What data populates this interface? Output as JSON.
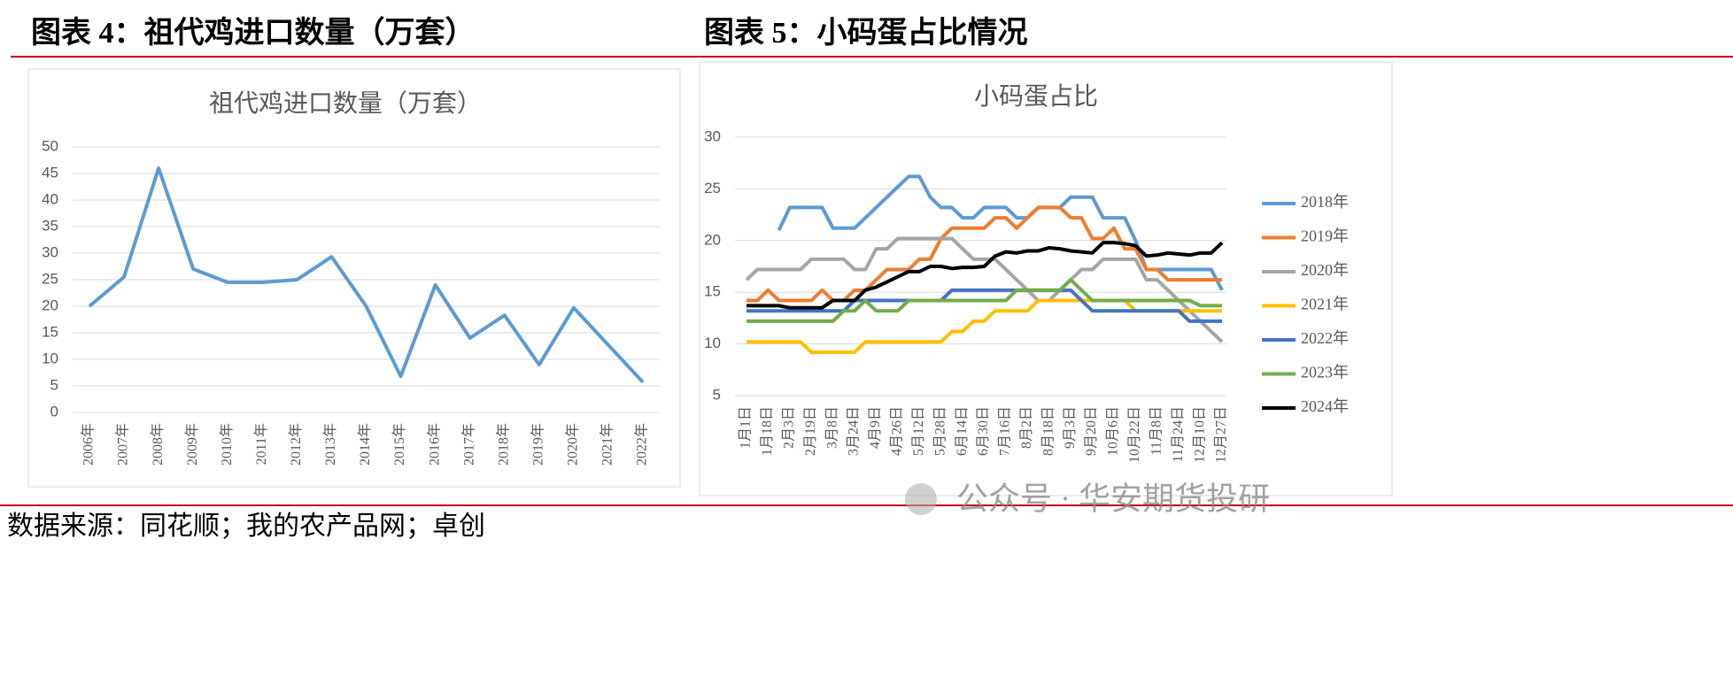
{
  "headings": [
    "图表 4：祖代鸡进口数量（万套）",
    "图表 5：小码蛋占比情况"
  ],
  "source": "数据来源：同花顺；我的农产品网；卓创",
  "watermark": "公众号 · 华安期货投研",
  "chart_data": [
    {
      "type": "line",
      "title": "祖代鸡进口数量（万套）",
      "categories": [
        "2006年",
        "2007年",
        "2008年",
        "2009年",
        "2010年",
        "2011年",
        "2012年",
        "2013年",
        "2014年",
        "2015年",
        "2016年",
        "2017年",
        "2018年",
        "2019年",
        "2020年",
        "2021年",
        "2022年"
      ],
      "values": [
        20,
        25.5,
        46,
        27,
        24.5,
        24.5,
        25,
        29.3,
        20,
        6.8,
        24,
        14,
        18.3,
        9,
        19.7,
        12.7,
        5.7
      ],
      "color": "#5b9bd5",
      "ylim": [
        0,
        50
      ],
      "yticks": [
        0,
        5,
        10,
        15,
        20,
        25,
        30,
        35,
        40,
        45,
        50
      ],
      "grid": true
    },
    {
      "type": "line",
      "title": "小码蛋占比",
      "categories": [
        "1月1日",
        null,
        "1月18日",
        null,
        "2月3日",
        null,
        "2月19日",
        null,
        "3月8日",
        null,
        "3月24日",
        null,
        "4月9日",
        null,
        "4月26日",
        null,
        "5月12日",
        null,
        "5月28日",
        null,
        "6月14日",
        null,
        "6月30日",
        null,
        "7月16日",
        null,
        "8月2日",
        null,
        "8月18日",
        null,
        "9月3日",
        null,
        "9月20日",
        null,
        "10月6日",
        null,
        "10月22日",
        null,
        "11月8日",
        null,
        "11月24日",
        null,
        "12月10日",
        null,
        "12月27日"
      ],
      "series": [
        {
          "name": "2018年",
          "color": "#5b9bd5",
          "values": [
            null,
            null,
            null,
            21,
            23.2,
            23.2,
            23.2,
            23.2,
            21.2,
            21.2,
            21.2,
            22.2,
            23.2,
            24.2,
            25.2,
            26.2,
            26.2,
            24.2,
            23.2,
            23.2,
            22.2,
            22.2,
            23.2,
            23.2,
            23.2,
            22.2,
            22.2,
            23.2,
            23.2,
            23.2,
            24.2,
            24.2,
            24.2,
            22.2,
            22.2,
            22.2,
            20,
            17.2,
            17.2,
            17.2,
            17.2,
            17.2,
            17.2,
            17.2,
            15.2
          ]
        },
        {
          "name": "2019年",
          "color": "#ed7d31",
          "values": [
            14.2,
            14.2,
            15.2,
            14.2,
            14.2,
            14.2,
            14.2,
            15.2,
            14.2,
            14.2,
            15.2,
            15.2,
            16.2,
            17.2,
            17.2,
            17.2,
            18.2,
            18.2,
            20.2,
            21.2,
            21.2,
            21.2,
            21.2,
            22.2,
            22.2,
            21.2,
            22.2,
            23.2,
            23.2,
            23.2,
            22.2,
            22.2,
            20.2,
            20.2,
            21.2,
            19.2,
            19.2,
            17.2,
            17.2,
            16.2,
            16.2,
            16.2,
            16.2,
            16.2,
            16.2
          ]
        },
        {
          "name": "2020年",
          "color": "#a5a5a5",
          "values": [
            16.2,
            17.2,
            17.2,
            17.2,
            17.2,
            17.2,
            18.2,
            18.2,
            18.2,
            18.2,
            17.2,
            17.2,
            19.2,
            19.2,
            20.2,
            20.2,
            20.2,
            20.2,
            20.2,
            20.2,
            19.2,
            18.2,
            18.2,
            18.2,
            17.2,
            16.2,
            15.2,
            14.2,
            14.2,
            15.2,
            16.2,
            17.2,
            17.2,
            18.2,
            18.2,
            18.2,
            18.2,
            16.2,
            16.2,
            15.2,
            14.2,
            13.2,
            12.2,
            11.2,
            10.2
          ]
        },
        {
          "name": "2021年",
          "color": "#ffc000",
          "values": [
            10.2,
            10.2,
            10.2,
            10.2,
            10.2,
            10.2,
            9.2,
            9.2,
            9.2,
            9.2,
            9.2,
            10.2,
            10.2,
            10.2,
            10.2,
            10.2,
            10.2,
            10.2,
            10.2,
            11.2,
            11.2,
            12.2,
            12.2,
            13.2,
            13.2,
            13.2,
            13.2,
            14.2,
            14.2,
            14.2,
            14.2,
            14.2,
            14.2,
            14.2,
            14.2,
            14.2,
            13.2,
            13.2,
            13.2,
            13.2,
            13.2,
            13.2,
            13.2,
            13.2,
            13.2
          ]
        },
        {
          "name": "2022年",
          "color": "#4472c4",
          "values": [
            13.2,
            13.2,
            13.2,
            13.2,
            13.2,
            13.2,
            13.2,
            13.2,
            13.2,
            13.2,
            14.2,
            14.2,
            14.2,
            14.2,
            14.2,
            14.2,
            14.2,
            14.2,
            14.2,
            15.2,
            15.2,
            15.2,
            15.2,
            15.2,
            15.2,
            15.2,
            15.2,
            15.2,
            15.2,
            15.2,
            15.2,
            14.2,
            13.2,
            13.2,
            13.2,
            13.2,
            13.2,
            13.2,
            13.2,
            13.2,
            13.2,
            12.2,
            12.2,
            12.2,
            12.2
          ]
        },
        {
          "name": "2023年",
          "color": "#70ad47",
          "values": [
            12.2,
            12.2,
            12.2,
            12.2,
            12.2,
            12.2,
            12.2,
            12.2,
            12.2,
            13.2,
            13.2,
            14.2,
            13.2,
            13.2,
            13.2,
            14.2,
            14.2,
            14.2,
            14.2,
            14.2,
            14.2,
            14.2,
            14.2,
            14.2,
            14.2,
            15.2,
            15.2,
            15.2,
            15.2,
            15.2,
            16.2,
            15.2,
            14.2,
            14.2,
            14.2,
            14.2,
            14.2,
            14.2,
            14.2,
            14.2,
            14.2,
            14.2,
            13.7,
            13.7,
            13.7
          ]
        },
        {
          "name": "2024年",
          "color": "#000000",
          "values": [
            13.7,
            13.7,
            13.7,
            13.7,
            13.5,
            13.5,
            13.5,
            13.5,
            14.2,
            14.2,
            14.2,
            15.2,
            15.5,
            16,
            16.5,
            17,
            17,
            17.5,
            17.5,
            17.3,
            17.4,
            17.4,
            17.5,
            18.5,
            18.9,
            18.8,
            19,
            19,
            19.3,
            19.2,
            19,
            18.9,
            18.8,
            19.8,
            19.8,
            19.7,
            19.5,
            18.5,
            18.6,
            18.8,
            18.7,
            18.6,
            18.8,
            18.8,
            19.8
          ]
        }
      ],
      "ylim": [
        5,
        30
      ],
      "yticks": [
        5,
        10,
        15,
        20,
        25,
        30
      ],
      "grid": true
    }
  ]
}
